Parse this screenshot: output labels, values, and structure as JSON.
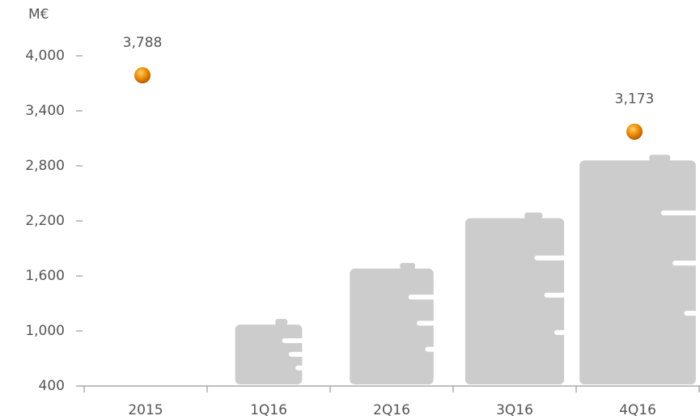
{
  "chart_data": {
    "type": "bar",
    "y_unit": "M€",
    "categories": [
      "2015",
      "1Q16",
      "2Q16",
      "3Q16",
      "4Q16"
    ],
    "series": [
      {
        "type": "bar",
        "color": "#cccccc",
        "values": [
          null,
          1070,
          1680,
          2230,
          2860
        ]
      },
      {
        "type": "dot",
        "color": "#f08a00",
        "values": [
          3788,
          null,
          null,
          null,
          3173
        ],
        "value_labels": [
          "3,788",
          null,
          null,
          null,
          "3,173"
        ]
      }
    ],
    "ylim": [
      400,
      4000
    ],
    "yticks": [
      400,
      {
        "value": 1000,
        "label": "1,000"
      },
      {
        "value": 1600,
        "label": "1,600"
      },
      {
        "value": 2200,
        "label": "2,200"
      },
      {
        "value": 2800,
        "label": "2,800"
      },
      {
        "value": 3400,
        "label": "3,400"
      },
      {
        "value": 4000,
        "label": "4,000"
      }
    ],
    "grid": false
  }
}
